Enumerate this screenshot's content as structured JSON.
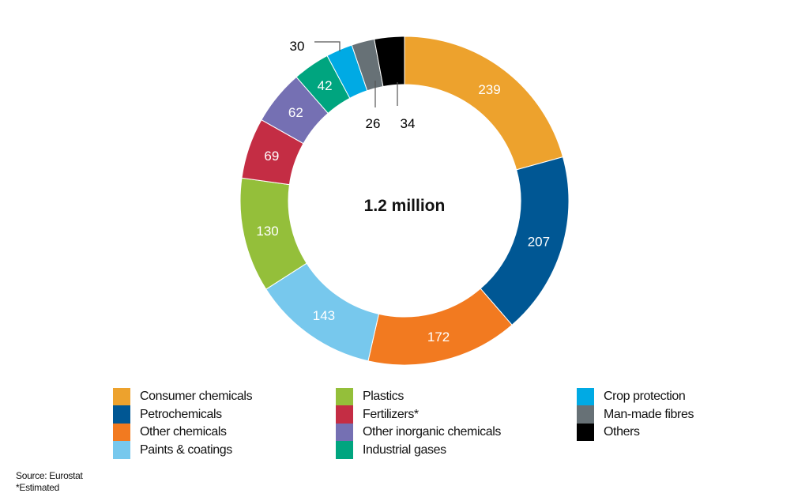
{
  "chart_data": {
    "type": "pie",
    "style": "donut",
    "center_label": "1.2 million",
    "start": "top, clockwise",
    "slices": [
      {
        "name": "Consumer chemicals",
        "value": 239,
        "label": "239",
        "color": "#EDA22D",
        "label_position": "inside"
      },
      {
        "name": "Petrochemicals",
        "value": 207,
        "label": "207",
        "color": "#005794",
        "label_position": "inside"
      },
      {
        "name": "Other chemicals",
        "value": 172,
        "label": "172",
        "color": "#F27A20",
        "label_position": "inside"
      },
      {
        "name": "Paints & coatings",
        "value": 143,
        "label": "143",
        "color": "#77C8ED",
        "label_position": "inside"
      },
      {
        "name": "Plastics",
        "value": 130,
        "label": "130",
        "color": "#94BF3A",
        "label_position": "inside"
      },
      {
        "name": "Fertilizers*",
        "value": 69,
        "label": "69",
        "color": "#C42D44",
        "label_position": "inside"
      },
      {
        "name": "Other inorganic chemicals",
        "value": 62,
        "label": "62",
        "color": "#7570B3",
        "label_position": "inside"
      },
      {
        "name": "Industrial gases",
        "value": 42,
        "label": "42",
        "color": "#00A57F",
        "label_position": "inside"
      },
      {
        "name": "Crop protection",
        "value": 30,
        "label": "30",
        "color": "#00AAE4",
        "label_position": "outside"
      },
      {
        "name": "Man-made fibres",
        "value": 26,
        "label": "26",
        "color": "#677176",
        "label_position": "outside"
      },
      {
        "name": "Others",
        "value": 34,
        "label": "34",
        "color": "#000000",
        "label_position": "outside"
      }
    ],
    "legend_placement": "bottom",
    "legend_columns": [
      [
        "Consumer chemicals",
        "Petrochemicals",
        "Other chemicals",
        "Paints & coatings"
      ],
      [
        "Plastics",
        "Fertilizers*",
        "Other inorganic chemicals",
        "Industrial gases"
      ],
      [
        "Crop protection",
        "Man-made fibres",
        "Others"
      ]
    ]
  },
  "notes": {
    "source": "Source: Eurostat",
    "footnote": "*Estimated"
  }
}
